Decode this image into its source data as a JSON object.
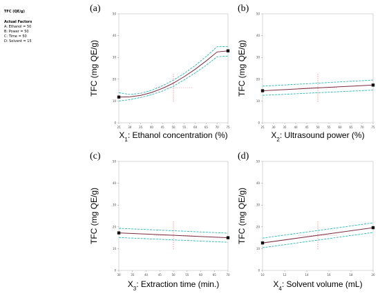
{
  "sidebar": {
    "title": "TFC (QE/g)",
    "factors_heading": "Actual Factors",
    "factors": [
      "A: Ethanol = 50",
      "B: Power = 50",
      "C: Time = 50",
      "D: Solvent = 15"
    ]
  },
  "colors": {
    "fit": "#7a2a3e",
    "ci": "#2bb5b5",
    "ref": "#e05060",
    "point": "#111111"
  },
  "chart_data": [
    {
      "panel": "(a)",
      "type": "line",
      "ylabel": "TFC (mg QE/g)",
      "xlabel_parts": [
        "X",
        "1",
        ": Ethanol concentration (%)"
      ],
      "xlim": [
        25,
        75
      ],
      "ylim": [
        0,
        50
      ],
      "xticks": [
        "25",
        "30",
        "35",
        "40",
        "45",
        "50",
        "55",
        "60",
        "65",
        "70",
        "75"
      ],
      "yticks": [
        "0",
        "10",
        "20",
        "30",
        "40",
        "50"
      ],
      "x": [
        25,
        30,
        35,
        40,
        45,
        50,
        55,
        60,
        65,
        70,
        75
      ],
      "series": [
        {
          "role": "fit",
          "values": [
            11.8,
            11.9,
            12.6,
            13.9,
            15.8,
            18.2,
            21.2,
            24.6,
            28.4,
            32.5,
            33.0
          ]
        },
        {
          "role": "upper",
          "values": [
            13.8,
            13.0,
            13.5,
            14.9,
            17.0,
            19.6,
            22.7,
            26.3,
            30.4,
            34.9,
            35.0
          ]
        },
        {
          "role": "lower",
          "values": [
            10.0,
            10.6,
            11.6,
            12.9,
            14.6,
            16.8,
            19.7,
            22.9,
            26.4,
            30.3,
            30.6
          ]
        }
      ],
      "endpoints": [
        [
          25,
          11.8
        ],
        [
          75,
          33.0
        ]
      ],
      "ref_x": 50,
      "ref_y": 16.1
    },
    {
      "panel": "(b)",
      "type": "line",
      "ylabel": "TFC (mg QE/g)",
      "xlabel_parts": [
        "X",
        "2",
        ": Ultrasound power (%)"
      ],
      "xlim": [
        25,
        75
      ],
      "ylim": [
        0,
        50
      ],
      "xticks": [
        "25",
        "30",
        "35",
        "40",
        "45",
        "50",
        "55",
        "60",
        "65",
        "70",
        "75"
      ],
      "yticks": [
        "0",
        "10",
        "20",
        "30",
        "40",
        "50"
      ],
      "x": [
        25,
        75
      ],
      "series": [
        {
          "role": "fit",
          "values": [
            14.7,
            17.3
          ]
        },
        {
          "role": "upper",
          "values": [
            16.8,
            19.6
          ]
        },
        {
          "role": "lower",
          "values": [
            12.6,
            15.0
          ]
        }
      ],
      "endpoints": [
        [
          25,
          14.7
        ],
        [
          75,
          17.3
        ]
      ],
      "ref_x": 50,
      "ref_y": 16.1
    },
    {
      "panel": "(c)",
      "type": "line",
      "ylabel": "TFC (mg QE/g)",
      "xlabel_parts": [
        "X",
        "3",
        ": Extraction time (min.)"
      ],
      "xlim": [
        30,
        70
      ],
      "ylim": [
        0,
        50
      ],
      "xticks": [
        "30",
        "35",
        "40",
        "45",
        "50",
        "55",
        "60",
        "65",
        "70"
      ],
      "yticks": [
        "0",
        "10",
        "20",
        "30",
        "40",
        "50"
      ],
      "x": [
        30,
        70
      ],
      "series": [
        {
          "role": "fit",
          "values": [
            17.2,
            15.0
          ]
        },
        {
          "role": "upper",
          "values": [
            19.3,
            17.1
          ]
        },
        {
          "role": "lower",
          "values": [
            15.1,
            12.9
          ]
        }
      ],
      "endpoints": [
        [
          30,
          17.2
        ],
        [
          70,
          15.0
        ]
      ],
      "ref_x": 50,
      "ref_y": 16.1
    },
    {
      "panel": "(d)",
      "type": "line",
      "ylabel": "TFC (mg QE/g)",
      "xlabel_parts": [
        "X",
        "4",
        ": Solvent volume (mL)"
      ],
      "xlim": [
        10,
        20
      ],
      "ylim": [
        0,
        50
      ],
      "xticks": [
        "10",
        "12",
        "14",
        "16",
        "18",
        "20"
      ],
      "yticks": [
        "0",
        "10",
        "20",
        "30",
        "40",
        "50"
      ],
      "x": [
        10,
        20
      ],
      "series": [
        {
          "role": "fit",
          "values": [
            12.6,
            19.6
          ]
        },
        {
          "role": "upper",
          "values": [
            14.8,
            21.8
          ]
        },
        {
          "role": "lower",
          "values": [
            10.4,
            17.4
          ]
        }
      ],
      "endpoints": [
        [
          10,
          12.6
        ],
        [
          20,
          19.6
        ]
      ],
      "ref_x": 15,
      "ref_y": 16.1
    }
  ]
}
